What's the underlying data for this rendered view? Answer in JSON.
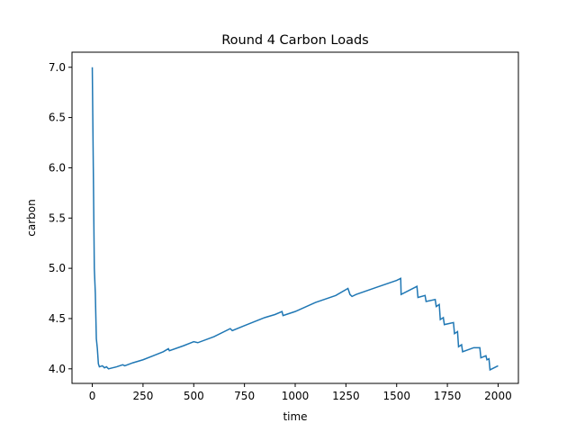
{
  "chart_data": {
    "type": "line",
    "title": "Round 4 Carbon Loads",
    "x_label": "time",
    "y_label": "carbon",
    "x": [
      0,
      5,
      10,
      15,
      20,
      25,
      30,
      35,
      50,
      60,
      70,
      80,
      100,
      120,
      150,
      160,
      200,
      250,
      300,
      350,
      375,
      380,
      450,
      500,
      520,
      600,
      680,
      690,
      750,
      800,
      850,
      900,
      935,
      940,
      1000,
      1100,
      1200,
      1260,
      1270,
      1280,
      1300,
      1400,
      1500,
      1520,
      1522,
      1600,
      1605,
      1640,
      1645,
      1690,
      1695,
      1710,
      1715,
      1730,
      1735,
      1780,
      1785,
      1800,
      1805,
      1820,
      1825,
      1880,
      1910,
      1915,
      1940,
      1945,
      1955,
      1960,
      2000
    ],
    "series": [
      {
        "color": "#1f77b4",
        "values": [
          7.0,
          6.0,
          5.0,
          4.75,
          4.3,
          4.2,
          4.05,
          4.02,
          4.03,
          4.01,
          4.02,
          4.0,
          4.01,
          4.02,
          4.04,
          4.03,
          4.06,
          4.09,
          4.13,
          4.17,
          4.2,
          4.18,
          4.23,
          4.27,
          4.26,
          4.32,
          4.4,
          4.38,
          4.43,
          4.47,
          4.51,
          4.54,
          4.57,
          4.53,
          4.57,
          4.66,
          4.73,
          4.8,
          4.74,
          4.72,
          4.74,
          4.81,
          4.88,
          4.9,
          4.74,
          4.82,
          4.71,
          4.73,
          4.67,
          4.69,
          4.62,
          4.64,
          4.49,
          4.51,
          4.44,
          4.46,
          4.35,
          4.37,
          4.22,
          4.24,
          4.17,
          4.21,
          4.21,
          4.11,
          4.13,
          4.09,
          4.1,
          3.99,
          4.03
        ]
      }
    ],
    "xlim": [
      -100,
      2100
    ],
    "ylim": [
      3.855,
      7.15
    ],
    "xticks": [
      0,
      250,
      500,
      750,
      1000,
      1250,
      1500,
      1750,
      2000
    ],
    "yticks": [
      {
        "value": 4,
        "label": "4.0"
      },
      4.5,
      {
        "value": 5,
        "label": "5.0"
      },
      5.5,
      {
        "value": 6,
        "label": "6.0"
      },
      6.5,
      {
        "value": 7,
        "label": "7.0"
      }
    ]
  }
}
